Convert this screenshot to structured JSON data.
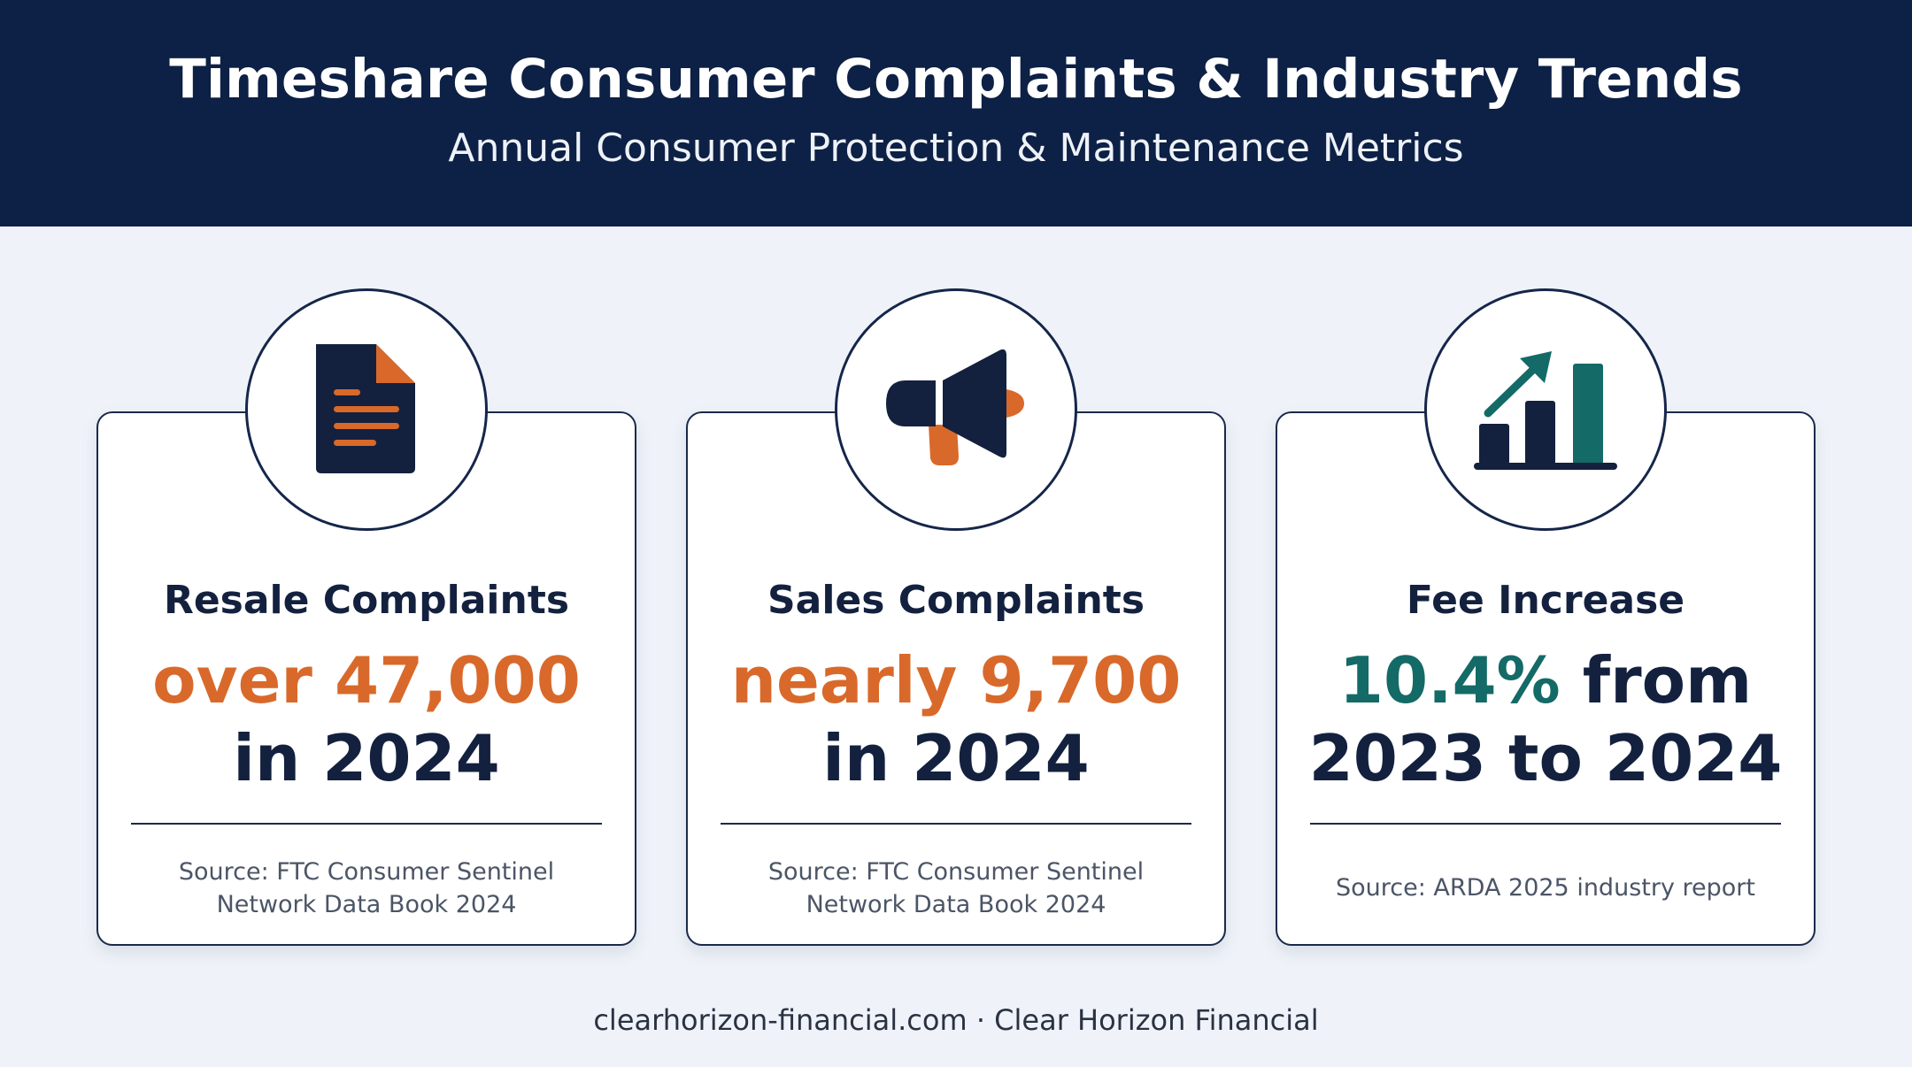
{
  "header": {
    "title": "Timeshare Consumer Complaints & Industry Trends",
    "subtitle": "Annual Consumer Protection & Maintenance Metrics"
  },
  "cards": [
    {
      "icon": "document-icon",
      "title": "Resale Complaints",
      "value_accent": "over 47,000",
      "value_rest": "in 2024",
      "source_line1": "Source: FTC Consumer Sentinel",
      "source_line2": "Network Data Book 2024"
    },
    {
      "icon": "megaphone-icon",
      "title": "Sales Complaints",
      "value_accent": "nearly 9,700",
      "value_rest": "in 2024",
      "source_line1": "Source: FTC Consumer Sentinel",
      "source_line2": "Network Data Book 2024"
    },
    {
      "icon": "bar-chart-trend-icon",
      "title": "Fee Increase",
      "value_accent": "10.4%",
      "value_line1_rest": " from",
      "value_line2": "2023 to 2024",
      "source_line1": "Source: ARDA 2025 industry report"
    }
  ],
  "footer": {
    "text": "clearhorizon-financial.com · Clear Horizon Financial"
  },
  "colors": {
    "navy": "#0d2045",
    "orange": "#d9692a",
    "teal": "#146a66",
    "background": "#eff3f9"
  }
}
